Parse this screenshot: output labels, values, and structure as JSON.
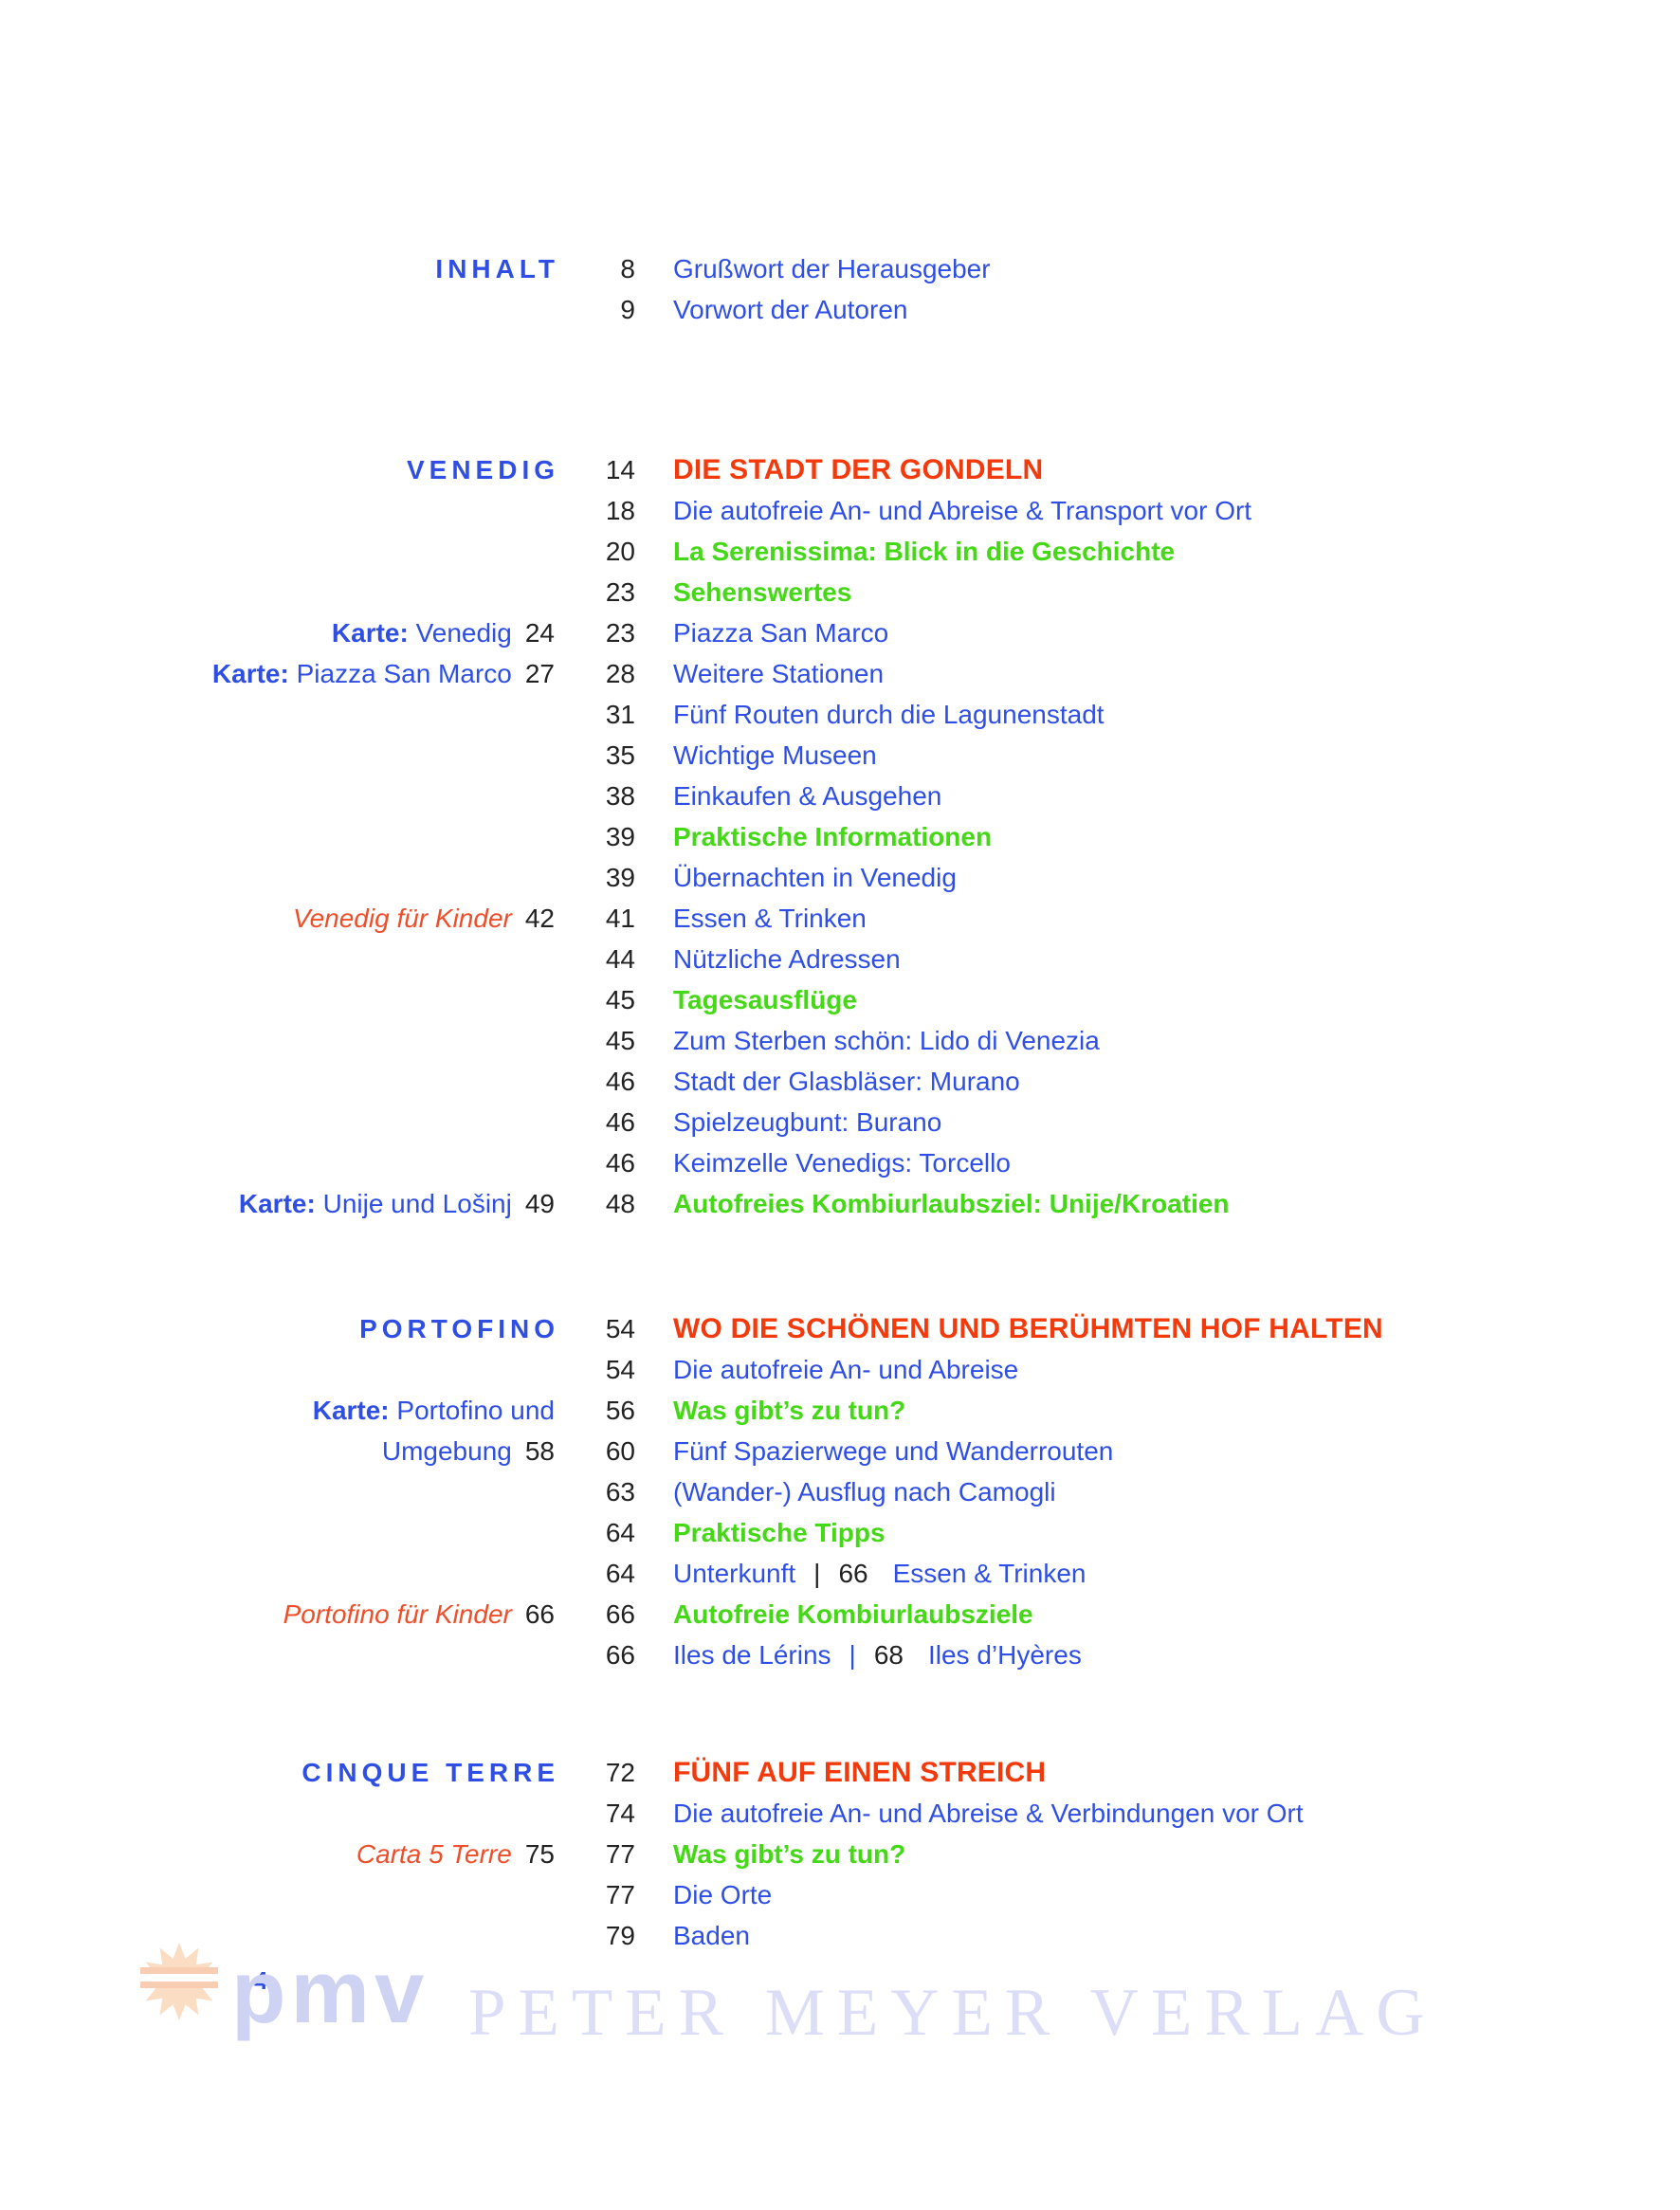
{
  "colors": {
    "link_blue": "#2f4fe4",
    "chapter_red": "#f23a0c",
    "note_orange": "#ef4e2a",
    "topic_green": "#44d816",
    "number_black": "#222222",
    "logo_lavender": "#ced2f3",
    "logo_light_lavender": "#dcdef7",
    "sun_peach": "#fbddc4"
  },
  "toc": {
    "sections": [
      {
        "rows": [
          {
            "left": {
              "style": "title",
              "label": "INHALT"
            },
            "num": "8",
            "text": "Grußwort der Herausgeber",
            "style": "plain"
          },
          {
            "num": "9",
            "text": "Vorwort der Autoren",
            "style": "plain"
          }
        ]
      },
      {
        "rows": [
          {
            "left": {
              "style": "title",
              "label": "VENEDIG"
            },
            "num": "14",
            "text": "DIE STADT DER GONDELN",
            "style": "chapter"
          },
          {
            "num": "18",
            "text": "Die autofreie An- und Abreise & Transport vor Ort",
            "style": "plain"
          },
          {
            "num": "20",
            "text": "La Serenissima: Blick in die Geschichte",
            "style": "topic"
          },
          {
            "num": "23",
            "text": "Sehenswertes",
            "style": "topic"
          },
          {
            "left": {
              "style": "map",
              "prefix": "Karte:",
              "label": "Venedig",
              "num": "24"
            },
            "num": "23",
            "text": "Piazza San Marco",
            "style": "plain"
          },
          {
            "left": {
              "style": "map",
              "prefix": "Karte:",
              "label": "Piazza San Marco",
              "num": "27"
            },
            "num": "28",
            "text": "Weitere Stationen",
            "style": "plain"
          },
          {
            "num": "31",
            "text": "Fünf Routen durch die Lagunenstadt",
            "style": "plain"
          },
          {
            "num": "35",
            "text": "Wichtige Museen",
            "style": "plain"
          },
          {
            "num": "38",
            "text": "Einkaufen & Ausgehen",
            "style": "plain"
          },
          {
            "num": "39",
            "text": "Praktische Informationen",
            "style": "topic"
          },
          {
            "num": "39",
            "text": "Übernachten in Venedig",
            "style": "plain"
          },
          {
            "left": {
              "style": "note",
              "label": "Venedig für Kinder",
              "num": "42"
            },
            "num": "41",
            "text": "Essen & Trinken",
            "style": "plain"
          },
          {
            "num": "44",
            "text": "Nützliche Adressen",
            "style": "plain"
          },
          {
            "num": "45",
            "text": "Tagesausflüge",
            "style": "topic"
          },
          {
            "num": "45",
            "text": "Zum Sterben schön: Lido di Venezia",
            "style": "plain"
          },
          {
            "num": "46",
            "text": "Stadt der Glasbläser: Murano",
            "style": "plain"
          },
          {
            "num": "46",
            "text": "Spielzeugbunt: Burano",
            "style": "plain"
          },
          {
            "num": "46",
            "text": "Keimzelle Venedigs: Torcello",
            "style": "plain"
          },
          {
            "left": {
              "style": "map",
              "prefix": "Karte:",
              "label": "Unije und Lošinj",
              "num": "49"
            },
            "num": "48",
            "text": "Autofreies Kombiurlaubsziel: Unije/Kroatien",
            "style": "topic"
          }
        ]
      },
      {
        "rows": [
          {
            "left": {
              "style": "title",
              "label": "PORTOFINO"
            },
            "num": "54",
            "text": "WO DIE SCHÖNEN UND BERÜHMTEN HOF HALTEN",
            "style": "chapter"
          },
          {
            "num": "54",
            "text": "Die autofreie An- und Abreise",
            "style": "plain"
          },
          {
            "left": {
              "style": "map",
              "prefix": "Karte:",
              "label": "Portofino und"
            },
            "num": "56",
            "text": "Was gibt’s zu tun?",
            "style": "topic"
          },
          {
            "left": {
              "style": "map",
              "label": "Umgebung",
              "num": "58"
            },
            "num": "60",
            "text": "Fünf Spazierwege und Wanderrouten",
            "style": "plain"
          },
          {
            "num": "63",
            "text": "(Wander-) Ausflug nach Camogli",
            "style": "plain"
          },
          {
            "num": "64",
            "text": "Praktische Tipps",
            "style": "topic"
          },
          {
            "num": "64",
            "text": "Unterkunft",
            "style": "plain",
            "sep": "|",
            "sep_style": "black",
            "num2": "66",
            "text2": "Essen & Trinken"
          },
          {
            "left": {
              "style": "note",
              "label": "Portofino für Kinder",
              "num": "66"
            },
            "num": "66",
            "text": "Autofreie Kombiurlaubsziele",
            "style": "topic"
          },
          {
            "num": "66",
            "text": "Iles de Lérins",
            "style": "plain",
            "sep": "|",
            "sep_style": "blue",
            "num2": "68",
            "text2": "Iles d’Hyères"
          }
        ]
      },
      {
        "rows": [
          {
            "left": {
              "style": "title",
              "label": "CINQUE TERRE"
            },
            "num": "72",
            "text": "FÜNF AUF EINEN STREICH",
            "style": "chapter"
          },
          {
            "num": "74",
            "text": "Die autofreie An- und Abreise & Verbindungen vor Ort",
            "style": "plain"
          },
          {
            "left": {
              "style": "note",
              "label": "Carta 5 Terre",
              "num": "75"
            },
            "num": "77",
            "text": "Was gibt’s zu tun?",
            "style": "topic"
          },
          {
            "num": "77",
            "text": "Die Orte",
            "style": "plain"
          },
          {
            "num": "79",
            "text": "Baden",
            "style": "plain"
          }
        ]
      }
    ]
  },
  "footer": {
    "page_number": "4",
    "logo_abbr": "pmv",
    "publisher": "PETER MEYER VERLAG",
    "sun_icon": "sunburst-icon"
  }
}
